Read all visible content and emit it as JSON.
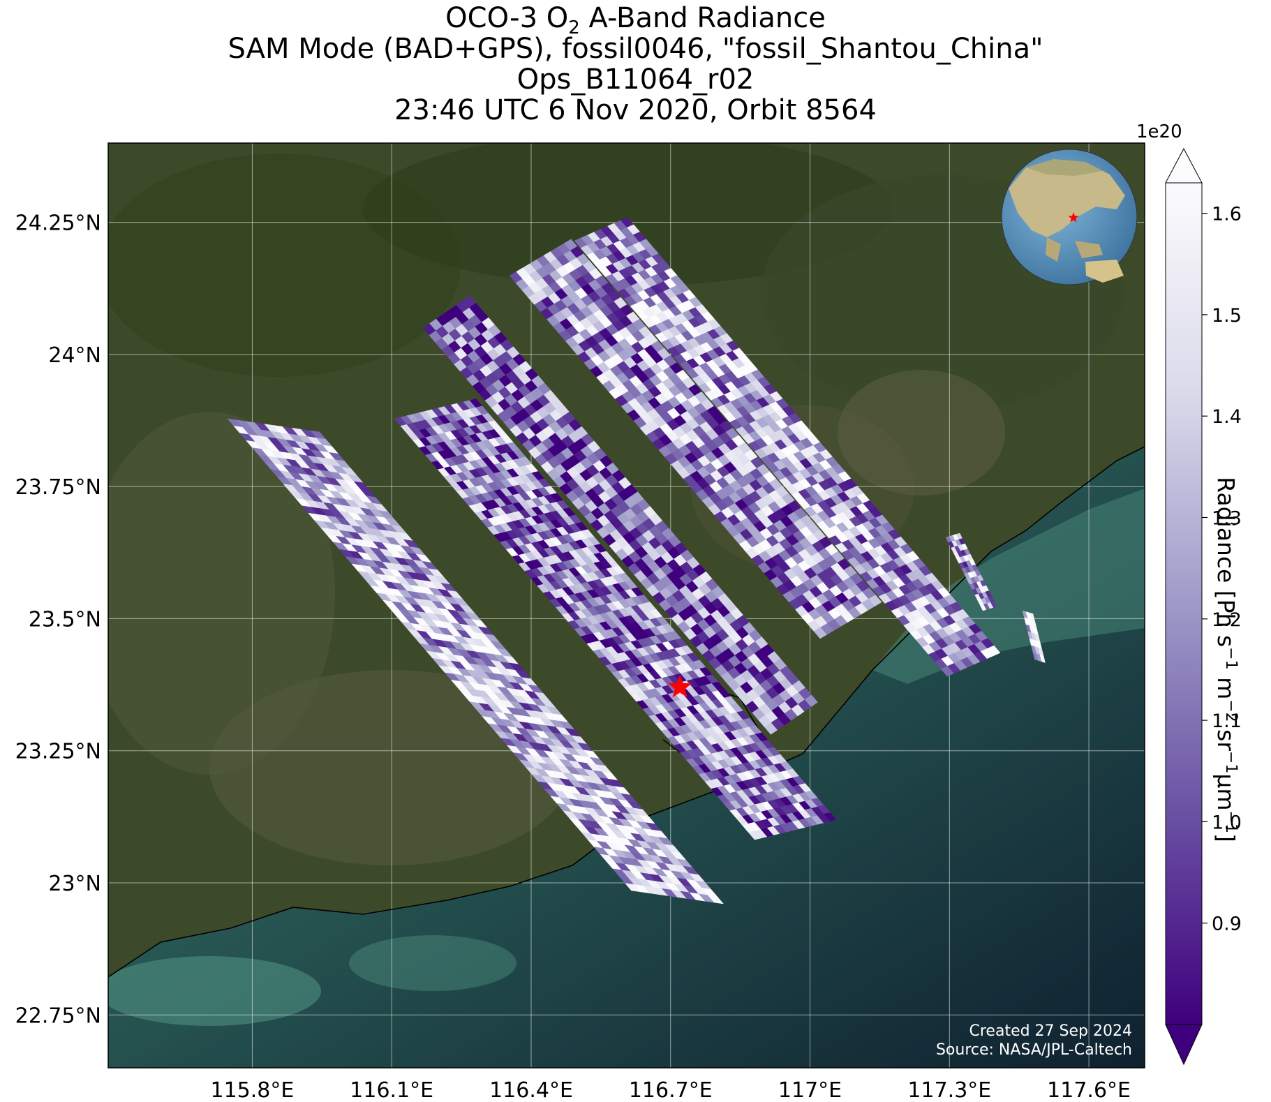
{
  "title": {
    "line1_pre": "OCO-3 O",
    "line1_sub": "2",
    "line1_post": " A-Band Radiance",
    "line2": "SAM Mode (BAD+GPS), fossil0046, \"fossil_Shantou_China\"",
    "line3": "Ops_B11064_r02",
    "line4": "23:46 UTC 6 Nov 2020, Orbit 8564"
  },
  "map": {
    "lon_range": [
      115.49,
      117.72
    ],
    "lat_range": [
      22.65,
      24.4
    ],
    "lat_ticks": [
      {
        "value": 24.25,
        "label": "24.25°N"
      },
      {
        "value": 24.0,
        "label": "24°N"
      },
      {
        "value": 23.75,
        "label": "23.75°N"
      },
      {
        "value": 23.5,
        "label": "23.5°N"
      },
      {
        "value": 23.25,
        "label": "23.25°N"
      },
      {
        "value": 23.0,
        "label": "23°N"
      },
      {
        "value": 22.75,
        "label": "22.75°N"
      }
    ],
    "lon_ticks": [
      {
        "value": 115.8,
        "label": "115.8°E"
      },
      {
        "value": 116.1,
        "label": "116.1°E"
      },
      {
        "value": 116.4,
        "label": "116.4°E"
      },
      {
        "value": 116.7,
        "label": "116.7°E"
      },
      {
        "value": 117.0,
        "label": "117°E"
      },
      {
        "value": 117.3,
        "label": "117.3°E"
      },
      {
        "value": 117.6,
        "label": "117.6°E"
      }
    ],
    "target": {
      "lon": 116.72,
      "lat": 23.37,
      "color": "#ff0000"
    },
    "gridlines": true
  },
  "colorbar": {
    "label_pre": "Radiance [Ph s",
    "sup1": "−1",
    "mid1": " m",
    "sup2": "−2",
    "mid2": " sr",
    "sup3": "−1",
    "mid3": "μm",
    "sup4": "−1",
    "label_post": "]",
    "exponent": "1e20",
    "range": [
      0.8,
      1.63
    ],
    "ticks": [
      {
        "value": 0.9,
        "label": "0.9"
      },
      {
        "value": 1.0,
        "label": "1.0"
      },
      {
        "value": 1.1,
        "label": "1.1"
      },
      {
        "value": 1.2,
        "label": "1.2"
      },
      {
        "value": 1.3,
        "label": "1.3"
      },
      {
        "value": 1.4,
        "label": "1.4"
      },
      {
        "value": 1.5,
        "label": "1.5"
      },
      {
        "value": 1.6,
        "label": "1.6"
      }
    ],
    "cmap_low": "#3f007d",
    "cmap_mid": "#9e9ac8",
    "cmap_high": "#fcfbfd"
  },
  "credits": {
    "created": "Created 27 Sep 2024",
    "source": "Source: NASA/JPL-Caltech"
  }
}
